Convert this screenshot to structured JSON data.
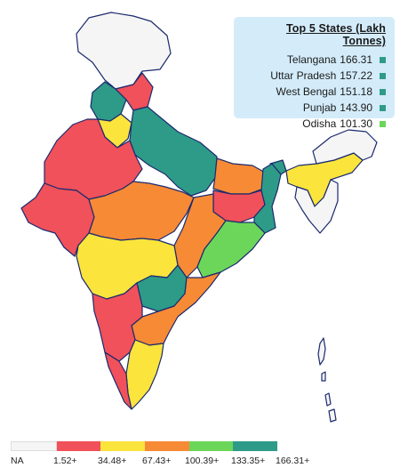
{
  "legend": {
    "title": "Top 5 States (Lakh Tonnes)",
    "rows": [
      {
        "state": "Telangana",
        "value": "166.31",
        "color": "#2e9b88"
      },
      {
        "state": "Uttar Pradesh",
        "value": "157.22",
        "color": "#2e9b88"
      },
      {
        "state": "West Bengal",
        "value": "151.18",
        "color": "#2e9b88"
      },
      {
        "state": "Punjab",
        "value": "143.90",
        "color": "#2e9b88"
      },
      {
        "state": "Odisha",
        "value": "101.30",
        "color": "#6cd65a"
      }
    ]
  },
  "scale": {
    "colors": [
      "#f5f5f5",
      "#f0515a",
      "#fbe43c",
      "#f78a35",
      "#6cd65a",
      "#2e9b88"
    ],
    "labels": [
      "NA",
      "1.52+",
      "34.48+",
      "67.43+",
      "100.39+",
      "133.35+",
      "166.31+"
    ]
  },
  "chart_data": {
    "type": "choropleth",
    "bins": [
      {
        "label": "NA",
        "min": null,
        "color": "#f5f5f5"
      },
      {
        "label": "1.52+",
        "min": 1.52,
        "color": "#f0515a"
      },
      {
        "label": "34.48+",
        "min": 34.48,
        "color": "#fbe43c"
      },
      {
        "label": "67.43+",
        "min": 67.43,
        "color": "#f78a35"
      },
      {
        "label": "100.39+",
        "min": 100.39,
        "color": "#6cd65a"
      },
      {
        "label": "133.35+",
        "min": 133.35,
        "color": "#2e9b88"
      },
      {
        "label": "166.31+",
        "min": 166.31,
        "color": null
      }
    ],
    "top_states": [
      {
        "state": "Telangana",
        "value": 166.31
      },
      {
        "state": "Uttar Pradesh",
        "value": 157.22
      },
      {
        "state": "West Bengal",
        "value": 151.18
      },
      {
        "state": "Punjab",
        "value": 143.9
      },
      {
        "state": "Odisha",
        "value": 101.3
      }
    ]
  }
}
